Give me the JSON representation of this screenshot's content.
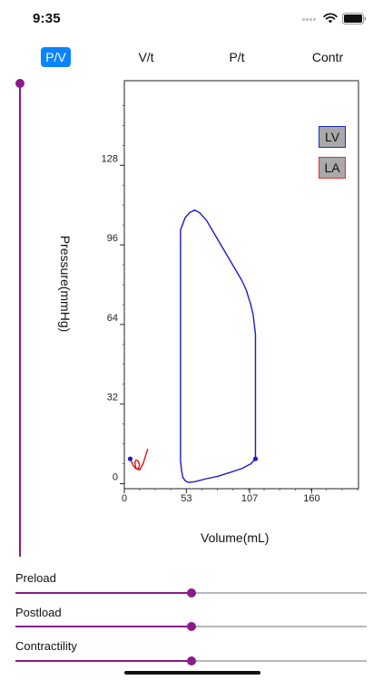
{
  "status": {
    "time": "9:35"
  },
  "tabs": [
    {
      "id": "pv",
      "label": "P/V",
      "active": true
    },
    {
      "id": "vt",
      "label": "V/t",
      "active": false
    },
    {
      "id": "pt",
      "label": "P/t",
      "active": false
    },
    {
      "id": "contr",
      "label": "Contr",
      "active": false
    }
  ],
  "side_slider": {
    "value": 1.0
  },
  "chart_data": {
    "type": "line",
    "xlabel": "Volume(mL)",
    "ylabel": "Pressure(mmHg)",
    "xlim": [
      0,
      200
    ],
    "ylim": [
      -2,
      162
    ],
    "xticks": [
      0,
      53,
      107,
      160
    ],
    "yticks": [
      0,
      32,
      64,
      96,
      128
    ],
    "legend": [
      "LV",
      "LA"
    ],
    "colors": {
      "LV": "#1a1ad0",
      "LA": "#dd1111"
    },
    "series": [
      {
        "name": "LV",
        "x": [
          112,
          108,
          100,
          90,
          80,
          70,
          60,
          55,
          52,
          50,
          49,
          48,
          48,
          48,
          48,
          48,
          48,
          52,
          56,
          60,
          64,
          70,
          80,
          90,
          100,
          104,
          106,
          108,
          110,
          112,
          112,
          112,
          112
        ],
        "y": [
          10,
          8,
          6,
          4.5,
          3,
          2,
          0.8,
          0.5,
          1.2,
          2.5,
          5,
          9,
          14,
          22,
          40,
          70,
          102,
          107,
          109,
          110,
          109,
          106,
          98,
          90,
          82,
          78,
          75,
          72,
          68,
          60,
          50,
          30,
          10
        ]
      },
      {
        "name": "LA",
        "x": [
          5,
          6,
          8,
          10,
          12,
          13,
          12,
          10,
          9,
          10,
          13,
          16,
          18,
          20
        ],
        "y": [
          10,
          9,
          7,
          6,
          6,
          7.5,
          9,
          9.5,
          8.5,
          6,
          5.5,
          8,
          11,
          14
        ]
      }
    ]
  },
  "sliders": [
    {
      "label": "Preload",
      "value": 0.5
    },
    {
      "label": "Postload",
      "value": 0.5
    },
    {
      "label": "Contractility",
      "value": 0.5
    }
  ]
}
